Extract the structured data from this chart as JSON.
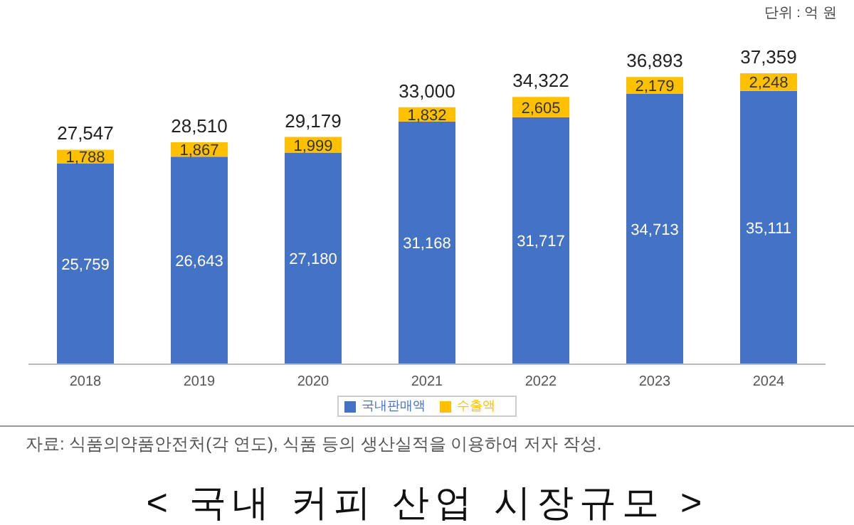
{
  "chart_data": {
    "type": "bar",
    "title": "< 국내 커피 산업 시장규모 >",
    "categories": [
      "2018",
      "2019",
      "2020",
      "2021",
      "2022",
      "2023",
      "2024"
    ],
    "stacked": true,
    "legend": "bottom",
    "grid": false,
    "series": [
      {
        "name": "국내판매액",
        "color": "#4472c4",
        "values": [
          25759,
          26643,
          27180,
          31168,
          31717,
          34713,
          35111
        ],
        "value_labels": [
          "25,759",
          "26,643",
          "27,180",
          "31,168",
          "31,717",
          "34,713",
          "35,111"
        ]
      },
      {
        "name": "수출액",
        "color": "#ffc000",
        "values": [
          1788,
          1867,
          1999,
          1832,
          2605,
          2179,
          2248
        ],
        "value_labels": [
          "1,788",
          "1,867",
          "1,999",
          "1,832",
          "2,605",
          "2,179",
          "2,248"
        ]
      }
    ],
    "totals": [
      "27,547",
      "28,510",
      "29,179",
      "33,000",
      "34,322",
      "36,893",
      "37,359"
    ],
    "annotations": [
      "단위 : 억 원",
      "자료: 식품의약품안전처(각 연도), 식품 등의 생산실적을 이용하여 저자 작성."
    ]
  }
}
